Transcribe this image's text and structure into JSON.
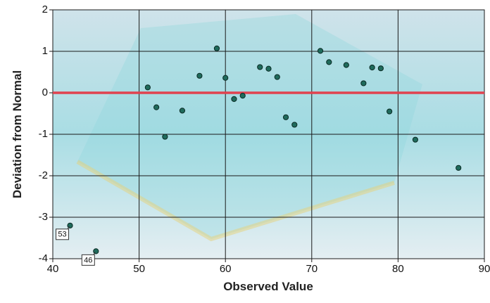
{
  "chart_data": {
    "type": "scatter",
    "xlabel": "Observed Value",
    "ylabel": "Deviation from Normal",
    "x": [
      42,
      45,
      51,
      52,
      53,
      55,
      57,
      59,
      60,
      61,
      62,
      64,
      65,
      66,
      67,
      68,
      71,
      72,
      74,
      76,
      77,
      78,
      79,
      82,
      87
    ],
    "values": [
      -3.2,
      -3.82,
      0.13,
      -0.35,
      -1.06,
      -0.43,
      0.41,
      1.07,
      0.36,
      -0.15,
      -0.07,
      0.62,
      0.58,
      0.38,
      -0.59,
      -0.77,
      1.01,
      0.74,
      0.67,
      0.23,
      0.61,
      0.59,
      -0.45,
      -1.13,
      -1.81
    ],
    "labels": [
      "53",
      "46",
      null,
      null,
      null,
      null,
      null,
      null,
      null,
      null,
      null,
      null,
      null,
      null,
      null,
      null,
      null,
      null,
      null,
      null,
      null,
      null,
      null,
      null,
      null
    ],
    "color": "#1f6b5c",
    "reference_line": {
      "y": 0,
      "color": "#e0424f"
    },
    "xlim": [
      40,
      90
    ],
    "xticks": [
      40,
      50,
      60,
      70,
      80,
      90
    ],
    "ylim": [
      -4,
      2
    ],
    "yticks": [
      -4,
      -3,
      -2,
      -1,
      0,
      1,
      2
    ],
    "grid": true
  }
}
